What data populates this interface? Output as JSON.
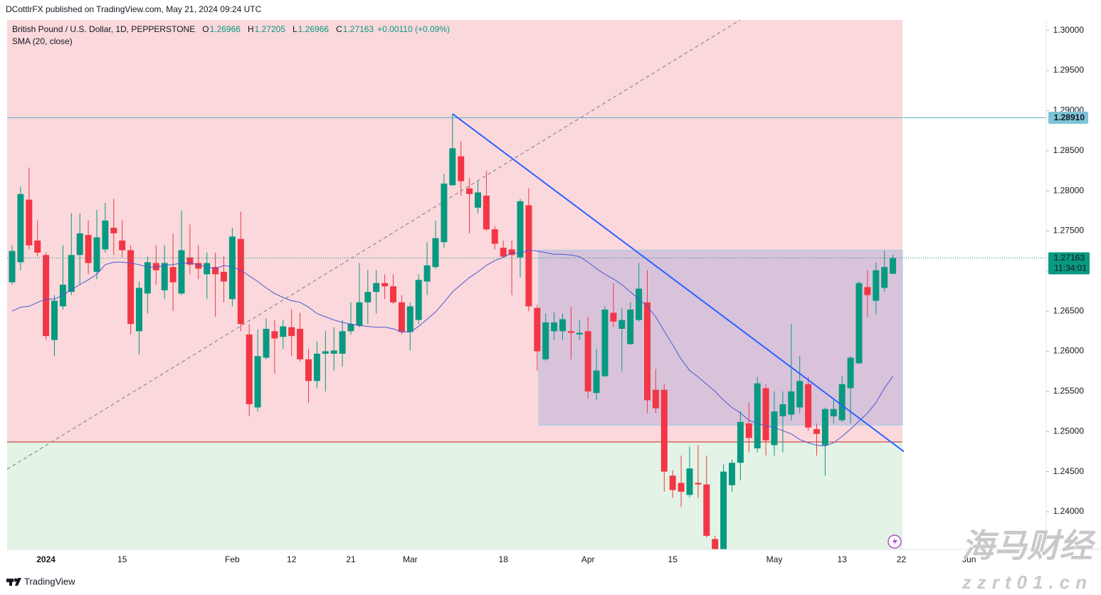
{
  "chart_data": {
    "type": "candlestick",
    "header": "DCottlrFX published on TradingView.com, May 21, 2024 09:24 UTC",
    "title": "British Pound / U.S. Dollar, 1D, PEPPERSTONE",
    "legend_items": [
      {
        "key": "O",
        "value": 1.26966
      },
      {
        "key": "H",
        "value": 1.27205
      },
      {
        "key": "L",
        "value": 1.26966
      },
      {
        "key": "C",
        "value": 1.27163
      }
    ],
    "change": "+0.00110 (+0.09%)",
    "categories": [
      null,
      null,
      null,
      null,
      "2024",
      null,
      null,
      null,
      null,
      null,
      null,
      null,
      null,
      "15",
      null,
      null,
      null,
      null,
      null,
      null,
      null,
      null,
      null,
      null,
      null,
      null,
      "Feb",
      null,
      null,
      null,
      null,
      null,
      null,
      "12",
      null,
      null,
      null,
      null,
      null,
      null,
      "21",
      null,
      null,
      null,
      null,
      null,
      null,
      "Mar",
      null,
      null,
      null,
      null,
      null,
      null,
      null,
      null,
      null,
      null,
      "18",
      null,
      null,
      null,
      null,
      null,
      null,
      null,
      null,
      null,
      "Apr",
      null,
      null,
      null,
      null,
      null,
      null,
      null,
      null,
      null,
      "15",
      null,
      null,
      null,
      null,
      null,
      null,
      null,
      null,
      null,
      null,
      null,
      "May",
      null,
      null,
      null,
      null,
      null,
      null,
      null,
      "13",
      null,
      null,
      null,
      null,
      null,
      null,
      "22",
      null,
      null,
      null,
      null,
      null,
      null,
      null,
      "Jun"
    ],
    "open": [
      1.2686,
      1.2711,
      1.2789,
      1.2738,
      1.272,
      1.2614,
      1.2656,
      1.2674,
      1.272,
      1.2745,
      1.2699,
      1.2727,
      1.2754,
      1.2738,
      1.2726,
      1.2625,
      1.2672,
      1.271,
      1.2676,
      1.2705,
      1.2672,
      1.2717,
      1.271,
      1.2696,
      1.2705,
      1.2699,
      1.2665,
      1.274,
      1.2621,
      1.253,
      1.2592,
      1.2625,
      1.2618,
      1.263,
      1.2628,
      1.259,
      1.2563,
      1.2597,
      1.2597,
      1.2597,
      1.2625,
      1.2632,
      1.2661,
      1.2674,
      1.2685,
      1.2681,
      1.2661,
      1.2624,
      1.2639,
      1.2687,
      1.2705,
      1.2736,
      1.2807,
      1.2843,
      1.2803,
      1.2779,
      1.2794,
      1.2752,
      1.2729,
      1.2727,
      1.2717,
      1.2782,
      1.2654,
      1.259,
      1.2625,
      1.2625,
      1.2625,
      1.2621,
      1.2625,
      1.2548,
      1.2569,
      1.2648,
      1.2628,
      1.2609,
      1.2639,
      1.2661,
      1.2552,
      1.2552,
      1.2445,
      1.2436,
      1.2421,
      1.2436,
      1.2434,
      1.2366,
      1.234,
      1.2433,
      1.2461,
      1.251,
      1.2479,
      1.2554,
      1.2483,
      1.2519,
      1.2521,
      1.253,
      1.2559,
      1.2503,
      1.2483,
      1.2519,
      1.2514,
      1.2554,
      1.2585,
      1.268,
      1.2663,
      1.2679,
      1.26966,
      null,
      null,
      null,
      null,
      null,
      null,
      null,
      null,
      null
    ],
    "high": [
      1.2732,
      1.2805,
      1.2829,
      1.2763,
      1.2723,
      1.267,
      1.2732,
      1.2772,
      1.2772,
      1.2763,
      1.2776,
      1.2785,
      1.279,
      1.2763,
      1.2732,
      1.2687,
      1.2718,
      1.2732,
      1.2732,
      1.2747,
      1.2775,
      1.2758,
      1.2732,
      1.2723,
      1.2723,
      1.2718,
      1.2754,
      1.2774,
      1.2634,
      1.2627,
      1.2641,
      1.2639,
      1.2639,
      1.2652,
      1.2648,
      1.2603,
      1.2612,
      1.2625,
      1.263,
      1.2639,
      1.2661,
      1.271,
      1.2701,
      1.2701,
      1.2696,
      1.2696,
      1.267,
      1.2661,
      1.2696,
      1.2736,
      1.2763,
      1.2821,
      1.2896,
      1.2862,
      1.2816,
      1.2812,
      1.2825,
      1.2756,
      1.2738,
      1.2738,
      1.279,
      1.2803,
      1.2658,
      1.2647,
      1.2649,
      1.2647,
      1.2655,
      1.2639,
      1.2643,
      1.2603,
      1.2656,
      1.2685,
      1.2654,
      1.2661,
      1.271,
      1.2701,
      1.2578,
      1.2559,
      1.2452,
      1.247,
      1.2481,
      1.2483,
      1.247,
      1.237,
      1.2459,
      1.2465,
      1.2525,
      1.2536,
      1.2568,
      1.2559,
      1.255,
      1.255,
      1.2634,
      1.2594,
      1.2568,
      1.251,
      1.253,
      1.2541,
      1.2569,
      1.2594,
      1.2687,
      1.2701,
      1.2711,
      1.2725,
      1.27205,
      null,
      null,
      null,
      null,
      null,
      null,
      null,
      null,
      null
    ],
    "low": [
      1.2683,
      1.2701,
      1.2727,
      1.2718,
      1.2614,
      1.2594,
      1.2652,
      1.267,
      1.2683,
      1.2696,
      1.269,
      1.2723,
      1.272,
      1.2717,
      1.2621,
      1.2596,
      1.2647,
      1.2683,
      1.2665,
      1.265,
      1.267,
      1.2696,
      1.269,
      1.2665,
      1.2643,
      1.2661,
      1.2656,
      1.2625,
      1.2519,
      1.2525,
      1.259,
      1.2572,
      1.2603,
      1.2594,
      1.2587,
      1.2536,
      1.2554,
      1.255,
      1.2576,
      1.2581,
      1.2621,
      1.263,
      1.2634,
      1.2647,
      1.2665,
      1.2659,
      1.2621,
      1.2601,
      1.2634,
      1.267,
      1.2703,
      1.2729,
      1.2806,
      1.2794,
      1.2747,
      1.2772,
      1.275,
      1.2727,
      1.2717,
      1.267,
      1.2692,
      1.265,
      1.2576,
      1.2588,
      1.2614,
      1.2614,
      1.259,
      1.2614,
      1.2541,
      1.2539,
      1.2568,
      1.263,
      1.2575,
      1.2608,
      1.2637,
      1.2523,
      1.2523,
      1.2425,
      1.2417,
      1.2406,
      1.2418,
      1.2417,
      1.2368,
      1.23,
      1.23,
      1.2425,
      1.2439,
      1.2474,
      1.2474,
      1.247,
      1.247,
      1.2474,
      1.2514,
      1.2523,
      1.2501,
      1.247,
      1.2445,
      1.251,
      1.2512,
      1.251,
      1.2584,
      1.2643,
      1.2646,
      1.2674,
      1.26966,
      null,
      null,
      null,
      null,
      null,
      null,
      null,
      null,
      null
    ],
    "close": [
      1.2725,
      1.2796,
      1.2732,
      1.2723,
      1.2619,
      1.2663,
      1.2683,
      1.272,
      1.2747,
      1.271,
      1.2742,
      1.2763,
      1.2747,
      1.2726,
      1.2634,
      1.2679,
      1.2711,
      1.2701,
      1.271,
      1.2686,
      1.2726,
      1.2708,
      1.2703,
      1.271,
      1.2696,
      1.2687,
      1.2743,
      1.2634,
      1.2534,
      1.2594,
      1.2628,
      1.2616,
      1.2631,
      1.2619,
      1.259,
      1.2563,
      1.2597,
      1.26,
      1.2601,
      1.2625,
      1.2634,
      1.2661,
      1.2674,
      1.2685,
      1.2681,
      1.2661,
      1.2624,
      1.2656,
      1.2689,
      1.2707,
      1.2741,
      1.2809,
      1.2853,
      1.2812,
      1.2796,
      1.2798,
      1.2752,
      1.2734,
      1.2718,
      1.272,
      1.2787,
      1.2656,
      1.26,
      1.2636,
      1.2636,
      1.264,
      1.2623,
      1.2623,
      1.255,
      1.2576,
      1.2652,
      1.2637,
      1.2639,
      1.2652,
      1.2678,
      1.2539,
      1.2529,
      1.245,
      1.2427,
      1.2425,
      1.2454,
      1.2434,
      1.237,
      1.234,
      1.245,
      1.2461,
      1.2512,
      1.2492,
      1.256,
      1.2489,
      1.2525,
      1.2534,
      1.255,
      1.2563,
      1.2505,
      1.2497,
      1.2528,
      1.2528,
      1.2559,
      1.2592,
      1.2685,
      1.267,
      1.2701,
      1.2705,
      1.27163,
      null,
      null,
      null,
      null,
      null,
      null,
      null,
      null,
      null
    ],
    "up_color": "#089981",
    "down_color": "#f23645",
    "series": [
      {
        "name": "SMA (20, close)",
        "color": "#4b57d6",
        "values": [
          1.265,
          1.2655,
          1.2656,
          1.2661,
          1.2665,
          1.2665,
          1.267,
          1.2677,
          1.2683,
          1.2689,
          1.2696,
          1.2708,
          1.2711,
          1.2711,
          1.271,
          1.2708,
          1.2705,
          1.2705,
          1.2707,
          1.2708,
          1.271,
          1.271,
          1.2708,
          1.2705,
          1.2703,
          1.2707,
          1.2705,
          1.2701,
          1.2694,
          1.2687,
          1.2679,
          1.2672,
          1.2667,
          1.2663,
          1.2661,
          1.2655,
          1.2647,
          1.2643,
          1.2639,
          1.2636,
          1.2634,
          1.2632,
          1.2631,
          1.263,
          1.263,
          1.2628,
          1.2624,
          1.2624,
          1.2631,
          1.264,
          1.2649,
          1.2661,
          1.2674,
          1.2683,
          1.2692,
          1.2699,
          1.2707,
          1.2713,
          1.2717,
          1.2723,
          1.2722,
          1.2726,
          1.2725,
          1.2723,
          1.2721,
          1.2721,
          1.272,
          1.2718,
          1.2711,
          1.2703,
          1.2696,
          1.269,
          1.2683,
          1.2674,
          1.2665,
          1.2656,
          1.2643,
          1.2625,
          1.2608,
          1.259,
          1.2576,
          1.2568,
          1.2559,
          1.255,
          1.2539,
          1.253,
          1.2523,
          1.2514,
          1.251,
          1.2507,
          1.2505,
          1.2501,
          1.2497,
          1.249,
          1.2486,
          1.2483,
          1.2482,
          1.2486,
          1.2494,
          1.2503,
          1.2513,
          1.2523,
          1.2536,
          1.2554,
          1.2569,
          null,
          null,
          null,
          null,
          null,
          null,
          null,
          null,
          null
        ]
      }
    ],
    "ylim": [
      1.2353,
      1.3013
    ],
    "yticks": [
      {
        "value": 1.24,
        "label": "1.24000"
      },
      {
        "value": 1.245,
        "label": "1.24500"
      },
      {
        "value": 1.25,
        "label": "1.25000"
      },
      {
        "value": 1.255,
        "label": "1.25500"
      },
      {
        "value": 1.26,
        "label": "1.26000"
      },
      {
        "value": 1.265,
        "label": "1.26500"
      },
      {
        "value": 1.27,
        "label": "1.27000"
      },
      {
        "value": 1.275,
        "label": "1.27500"
      },
      {
        "value": 1.28,
        "label": "1.28000"
      },
      {
        "value": 1.285,
        "label": "1.28500"
      },
      {
        "value": 1.29,
        "label": "1.29000"
      },
      {
        "value": 1.295,
        "label": "1.29500"
      },
      {
        "value": 1.3,
        "label": "1.30000"
      }
    ],
    "grid": false,
    "price_line": {
      "value": 1.2891,
      "label": "1.28910"
    },
    "last_price": {
      "value": 1.27163,
      "countdown": "11:34:01"
    },
    "support": 1.2487,
    "range_box": {
      "top": 1.2726,
      "bottom": 1.2508
    },
    "trendline": {
      "from": 1.2896,
      "to": 1.2475
    },
    "dashed_line": {
      "from": 1.2453,
      "to": 1.3013
    },
    "branding": "TradingView",
    "watermark": {
      "title": "海马财经",
      "url": "zzrt01.cn"
    }
  }
}
